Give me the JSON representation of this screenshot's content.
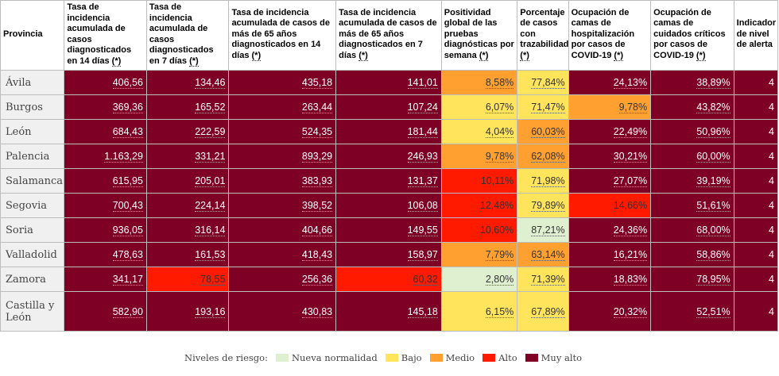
{
  "headers": [
    {
      "text": "Provincia",
      "note": ""
    },
    {
      "text": "Tasa de incidencia acumulada de casos diagnosticados en 14 días ",
      "note": "(*)"
    },
    {
      "text": "Tasa de incidencia acumulada de casos diagnosticados en 7 días ",
      "note": "(*)"
    },
    {
      "text": "Tasa de incidencia acumulada de casos de más de 65 años diagnosticados en 14 días ",
      "note": "(*)"
    },
    {
      "text": "Tasa de incidencia acumulada de casos de más de 65 años diagnosticados en 7 días ",
      "note": "(*)"
    },
    {
      "text": "Positividad global de las pruebas diagnósticas por semana ",
      "note": "(*)"
    },
    {
      "text": "Porcentaje de casos con trazabilidad ",
      "note": "(*)"
    },
    {
      "text": "Ocupación de camas de hospitalización por casos de COVID-19 ",
      "note": "(*)"
    },
    {
      "text": "Ocupación de camas de cuidados críticos por casos de COVID-19 ",
      "note": "(*)"
    },
    {
      "text": "Indicador de nivel de alerta",
      "note": ""
    }
  ],
  "rows": [
    {
      "province": "Ávila",
      "values": [
        "406,56",
        "134,46",
        "435,18",
        "141,01",
        "8,58%",
        "77,84%",
        "24,13%",
        "38,89%",
        "4"
      ]
    },
    {
      "province": "Burgos",
      "values": [
        "369,36",
        "165,52",
        "263,44",
        "107,24",
        "6,07%",
        "71,47%",
        "9,78%",
        "43,82%",
        "4"
      ]
    },
    {
      "province": "León",
      "values": [
        "684,43",
        "222,59",
        "524,35",
        "181,44",
        "4,04%",
        "60,03%",
        "22,49%",
        "50,96%",
        "4"
      ]
    },
    {
      "province": "Palencia",
      "values": [
        "1.163,29",
        "331,21",
        "893,29",
        "246,93",
        "9,78%",
        "62,08%",
        "30,21%",
        "60,00%",
        "4"
      ]
    },
    {
      "province": "Salamanca",
      "values": [
        "615,95",
        "205,01",
        "383,93",
        "131,37",
        "10,11%",
        "71,98%",
        "27,07%",
        "39,19%",
        "4"
      ]
    },
    {
      "province": "Segovia",
      "values": [
        "700,43",
        "224,14",
        "398,52",
        "106,08",
        "12,48%",
        "79,89%",
        "14,66%",
        "51,61%",
        "4"
      ]
    },
    {
      "province": "Soria",
      "values": [
        "936,05",
        "316,14",
        "404,66",
        "149,55",
        "10,60%",
        "87,21%",
        "24,36%",
        "68,00%",
        "4"
      ]
    },
    {
      "province": "Valladolid",
      "values": [
        "478,63",
        "161,53",
        "418,43",
        "158,97",
        "7,79%",
        "63,14%",
        "16,21%",
        "58,86%",
        "4"
      ]
    },
    {
      "province": "Zamora",
      "values": [
        "341,17",
        "78,55",
        "256,36",
        "60,32",
        "2,80%",
        "71,39%",
        "18,83%",
        "78,95%",
        "4"
      ]
    },
    {
      "province": "Castilla y León",
      "values": [
        "582,90",
        "193,16",
        "430,83",
        "145,18",
        "6,15%",
        "67,89%",
        "20,32%",
        "52,51%",
        "4"
      ]
    }
  ],
  "risk_levels": {
    "muyalto": "#7e0025",
    "alto": "#ff1a00",
    "medio": "#ffa030",
    "bajo": "#ffe45c",
    "nueva": "#dff0d0"
  },
  "legend": {
    "title": "Niveles de riesgo:",
    "items": [
      {
        "key": "nueva",
        "label": "Nueva normalidad"
      },
      {
        "key": "bajo",
        "label": "Bajo"
      },
      {
        "key": "medio",
        "label": "Medio"
      },
      {
        "key": "alto",
        "label": "Alto"
      },
      {
        "key": "muyalto",
        "label": "Muy alto"
      }
    ]
  }
}
